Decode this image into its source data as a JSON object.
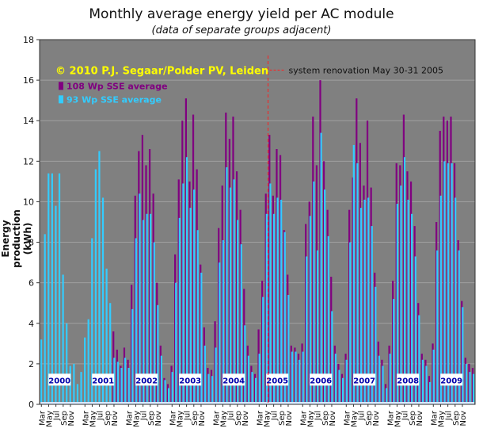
{
  "chart_data": {
    "type": "bar",
    "title": "Monthly average energy yield per AC module",
    "subtitle": "(data of separate groups adjacent)",
    "ylabel": "Energy production (kWh)",
    "xlabel": "",
    "ylim": [
      0,
      18
    ],
    "yticks": [
      0,
      2,
      4,
      6,
      8,
      10,
      12,
      14,
      16,
      18
    ],
    "grid": true,
    "background": "#808080",
    "copyright": "© 2010 P.J. Segaar/Polder PV, Leiden",
    "annotation": {
      "text": "system renovation May 30-31 2005",
      "year": "2005",
      "month": "May"
    },
    "month_tick_labels": [
      "Mar",
      "May",
      "Jul",
      "Sep",
      "Nov"
    ],
    "years": [
      "2000",
      "2001",
      "2002",
      "2003",
      "2004",
      "2005",
      "2006",
      "2007",
      "2008",
      "2009"
    ],
    "series": [
      {
        "name": "108 Wp SSE average",
        "color": "#800080",
        "values_by_year": [
          [
            null,
            null,
            null,
            null,
            null,
            null,
            null,
            null,
            null,
            null,
            null,
            null
          ],
          [
            null,
            null,
            null,
            null,
            null,
            null,
            null,
            null,
            3.6,
            2.7,
            1.9,
            2.8
          ],
          [
            2.2,
            5.9,
            10.3,
            12.5,
            13.3,
            11.8,
            12.6,
            10.4,
            6.0,
            2.9,
            1.3,
            1.0
          ],
          [
            1.9,
            7.4,
            11.1,
            14.0,
            15.1,
            11.0,
            14.3,
            11.6,
            6.9,
            3.8,
            1.8,
            1.7
          ],
          [
            4.1,
            8.7,
            10.8,
            14.4,
            13.1,
            14.2,
            11.5,
            9.6,
            5.7,
            2.9,
            1.9,
            1.5
          ],
          [
            3.7,
            6.1,
            10.4,
            13.3,
            10.3,
            12.6,
            12.3,
            8.6,
            6.4,
            2.9,
            2.8,
            2.5
          ],
          [
            3.0,
            8.9,
            10.0,
            14.2,
            11.8,
            16.0,
            12.0,
            9.6,
            6.3,
            2.9,
            2.0,
            1.5
          ],
          [
            2.5,
            9.6,
            11.2,
            15.1,
            12.9,
            10.8,
            14.0,
            10.7,
            6.5,
            3.1,
            2.2,
            1.0
          ],
          [
            2.9,
            6.1,
            11.9,
            11.8,
            14.3,
            11.5,
            11.0,
            8.8,
            5.0,
            2.5,
            2.2,
            1.4
          ],
          [
            3.0,
            9.0,
            13.5,
            14.2,
            14.0,
            14.2,
            11.9,
            8.1,
            5.1,
            2.3,
            2.0,
            1.8
          ]
        ]
      },
      {
        "name": "93 Wp SSE average",
        "color": "#33ccff",
        "values_by_year": [
          [
            3.2,
            8.4,
            11.4,
            11.4,
            9.8,
            11.4,
            6.4,
            4.0,
            1.9,
            2.0,
            1.0,
            1.6
          ],
          [
            3.3,
            4.2,
            8.2,
            11.6,
            12.5,
            10.2,
            6.7,
            5.0,
            2.3,
            2.1,
            1.8,
            2.3
          ],
          [
            1.8,
            4.7,
            8.2,
            10.4,
            9.1,
            9.4,
            9.4,
            8.0,
            4.9,
            2.4,
            1.2,
            0.8
          ],
          [
            1.6,
            6.0,
            9.2,
            10.9,
            12.2,
            9.7,
            10.6,
            8.6,
            6.5,
            2.9,
            1.5,
            1.4
          ],
          [
            2.8,
            7.0,
            8.1,
            11.7,
            10.7,
            11.1,
            9.1,
            7.9,
            3.9,
            2.4,
            1.6,
            1.3
          ],
          [
            2.5,
            5.3,
            9.4,
            10.9,
            9.4,
            10.2,
            10.1,
            8.5,
            5.4,
            2.6,
            2.6,
            2.2
          ],
          [
            2.6,
            7.3,
            9.3,
            11.0,
            7.6,
            13.4,
            10.6,
            8.3,
            4.6,
            2.5,
            1.7,
            1.3
          ],
          [
            2.2,
            8.0,
            12.8,
            11.9,
            9.7,
            10.1,
            10.2,
            8.8,
            5.8,
            2.4,
            1.9,
            0.8
          ],
          [
            2.5,
            5.2,
            9.9,
            10.8,
            12.2,
            10.1,
            9.4,
            7.3,
            4.4,
            2.2,
            1.9,
            1.1
          ],
          [
            2.7,
            7.6,
            10.3,
            12.0,
            11.9,
            11.9,
            10.2,
            7.6,
            4.8,
            2.0,
            1.6,
            1.5
          ]
        ]
      }
    ]
  }
}
